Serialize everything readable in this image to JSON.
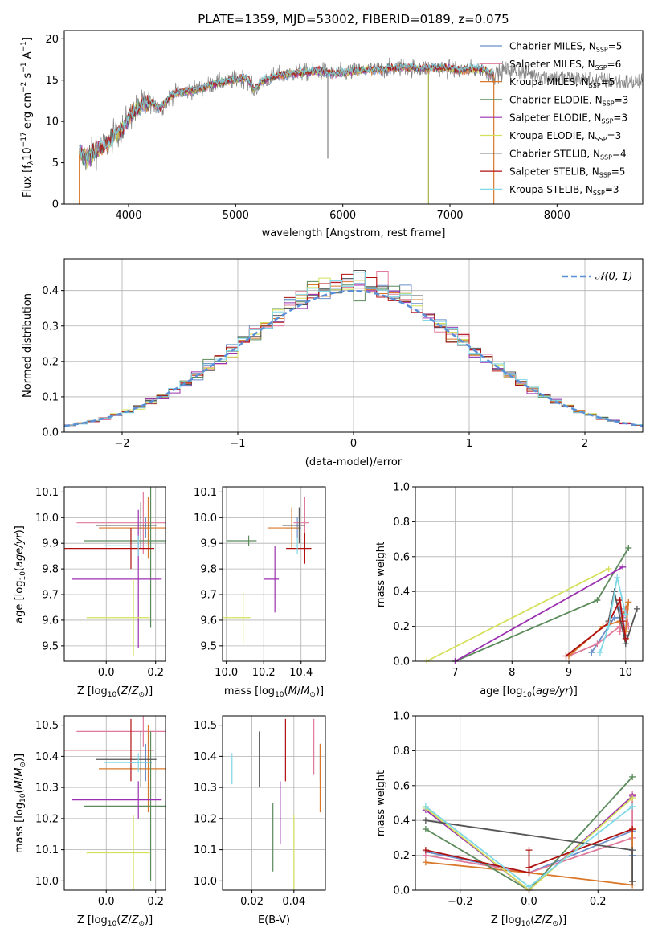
{
  "figure_title": "PLATE=1359, MJD=53002, FIBERID=0189, z=0.075",
  "colors": {
    "Chabrier MILES": "#6b8fc9",
    "Salpeter MILES": "#e07a9a",
    "Kroupa MILES": "#d9782a",
    "Chabrier ELODIE": "#5b8a5b",
    "Salpeter ELODIE": "#9b30b0",
    "Kroupa ELODIE": "#d4e05a",
    "Chabrier STELIB": "#555555",
    "Salpeter STELIB": "#b01010",
    "Kroupa STELIB": "#7fd8e6",
    "data": "#808080",
    "normal": "#5b8fd6"
  },
  "chart_data": [
    {
      "id": "spectrum",
      "type": "line",
      "title": "PLATE=1359, MJD=53002, FIBERID=0189, z=0.075",
      "xlabel": "wavelength [Angstrom, rest frame]",
      "ylabel": "Flux [f_λ 10^-17 erg cm^-2 s^-1 A^-1]",
      "xlim": [
        3400,
        8800
      ],
      "ylim": [
        0,
        21
      ],
      "xticks": [
        4000,
        5000,
        6000,
        7000,
        8000
      ],
      "yticks": [
        0,
        5,
        10,
        15,
        20
      ],
      "legend_position": "top-right",
      "legend": [
        {
          "label": "Chabrier MILES, N",
          "sub": "SSP",
          "tail": "=5",
          "color": "#6b8fc9"
        },
        {
          "label": "Salpeter MILES, N",
          "sub": "SSP",
          "tail": "=6",
          "color": "#e07a9a"
        },
        {
          "label": "Kroupa MILES, N",
          "sub": "SSP",
          "tail": "=5",
          "color": "#d9782a"
        },
        {
          "label": "Chabrier ELODIE, N",
          "sub": "SSP",
          "tail": "=3",
          "color": "#5b8a5b"
        },
        {
          "label": "Salpeter ELODIE, N",
          "sub": "SSP",
          "tail": "=3",
          "color": "#9b30b0"
        },
        {
          "label": "Kroupa ELODIE, N",
          "sub": "SSP",
          "tail": "=3",
          "color": "#d4e05a"
        },
        {
          "label": "Chabrier STELIB, N",
          "sub": "SSP",
          "tail": "=4",
          "color": "#555555"
        },
        {
          "label": "Salpeter STELIB, N",
          "sub": "SSP",
          "tail": "=5",
          "color": "#b01010"
        },
        {
          "label": "Kroupa STELIB, N",
          "sub": "SSP",
          "tail": "=3",
          "color": "#7fd8e6"
        }
      ],
      "continuum": [
        [
          3540,
          6.2
        ],
        [
          3620,
          5.5
        ],
        [
          3700,
          6.5
        ],
        [
          3800,
          7.2
        ],
        [
          3880,
          8.6
        ],
        [
          3950,
          9.2
        ],
        [
          4000,
          10.5
        ],
        [
          4100,
          11.8
        ],
        [
          4200,
          12.3
        ],
        [
          4300,
          11.6
        ],
        [
          4400,
          13.2
        ],
        [
          4500,
          13.6
        ],
        [
          4600,
          13.8
        ],
        [
          4700,
          14.1
        ],
        [
          4800,
          14.6
        ],
        [
          4900,
          14.8
        ],
        [
          5000,
          15.1
        ],
        [
          5100,
          15.3
        ],
        [
          5170,
          13.8
        ],
        [
          5250,
          14.9
        ],
        [
          5400,
          15.6
        ],
        [
          5600,
          15.9
        ],
        [
          5800,
          16.1
        ],
        [
          5900,
          15.8
        ],
        [
          6000,
          15.9
        ],
        [
          6200,
          16.2
        ],
        [
          6400,
          16.3
        ],
        [
          6563,
          16.6
        ],
        [
          6700,
          16.4
        ],
        [
          6900,
          16.5
        ],
        [
          7100,
          16.2
        ],
        [
          7300,
          16.4
        ],
        [
          7400,
          15.6
        ],
        [
          7500,
          16.2
        ],
        [
          7600,
          16.1
        ],
        [
          7800,
          15.7
        ],
        [
          8000,
          15.3
        ],
        [
          8200,
          15.2
        ],
        [
          8400,
          15.0
        ],
        [
          8600,
          14.8
        ],
        [
          8800,
          14.7
        ]
      ],
      "model_start": 3540,
      "model_end": 7410,
      "spikes": [
        [
          5860,
          5.5
        ],
        [
          6800,
          0
        ],
        [
          7410,
          0
        ]
      ]
    },
    {
      "id": "residuals",
      "type": "histogram",
      "xlabel": "(data-model)/error",
      "ylabel": "Normed distribution",
      "xlim": [
        -2.5,
        2.5
      ],
      "ylim": [
        0,
        0.49
      ],
      "xticks": [
        -2,
        -1,
        0,
        1,
        2
      ],
      "yticks": [
        0.0,
        0.1,
        0.2,
        0.3,
        0.4
      ],
      "legend_position": "top-right",
      "legend_label": "𝒩(0, 1)",
      "bin_width": 0.1
    },
    {
      "id": "age_vs_Z",
      "type": "errorbar",
      "xlabel": "Z [log10(Z/Z⊙)]",
      "ylabel": "age [log10(age/yr)]",
      "xlim": [
        -0.17,
        0.24
      ],
      "ylim": [
        9.44,
        10.12
      ],
      "xticks": [
        0.0,
        0.2
      ],
      "yticks": [
        9.5,
        9.6,
        9.7,
        9.8,
        9.9,
        10.0,
        10.1
      ],
      "points": [
        {
          "model": "Chabrier MILES",
          "x": 0.16,
          "xerr": 0.07,
          "y": 9.96,
          "yerr": 0.04
        },
        {
          "model": "Salpeter MILES",
          "x": 0.15,
          "xerr": 0.27,
          "y": 9.98,
          "yerr": 0.12
        },
        {
          "model": "Kroupa MILES",
          "x": 0.17,
          "xerr": 0.2,
          "y": 9.96,
          "yerr": 0.12
        },
        {
          "model": "Chabrier ELODIE",
          "x": 0.18,
          "xerr": 0.27,
          "y": 9.91,
          "yerr": 0.34
        },
        {
          "model": "Salpeter ELODIE",
          "x": 0.13,
          "xerr": 0.27,
          "y": 9.76,
          "yerr": 0.27
        },
        {
          "model": "Kroupa ELODIE",
          "x": 0.11,
          "xerr": 0.19,
          "y": 9.61,
          "yerr": 0.15
        },
        {
          "model": "Chabrier STELIB",
          "x": 0.14,
          "xerr": 0.18,
          "y": 9.97,
          "yerr": 0.09
        },
        {
          "model": "Salpeter STELIB",
          "x": 0.1,
          "xerr": 0.27,
          "y": 9.88,
          "yerr": 0.08
        },
        {
          "model": "Kroupa STELIB",
          "x": 0.13,
          "xerr": 0.14,
          "y": 9.89,
          "yerr": 0.04
        }
      ]
    },
    {
      "id": "age_vs_mass",
      "type": "errorbar",
      "xlabel": "mass [log10(M/M⊙)]",
      "ylabel": "",
      "xlim": [
        9.98,
        10.53
      ],
      "ylim": [
        9.44,
        10.12
      ],
      "xticks": [
        10.0,
        10.2,
        10.4
      ],
      "yticks": [
        9.5,
        9.6,
        9.7,
        9.8,
        9.9,
        10.0,
        10.1
      ],
      "points": [
        {
          "model": "Chabrier MILES",
          "x": 10.38,
          "xerr": 0.06,
          "y": 9.96,
          "yerr": 0.04
        },
        {
          "model": "Salpeter MILES",
          "x": 10.42,
          "xerr": 0.06,
          "y": 9.98,
          "yerr": 0.1
        },
        {
          "model": "Kroupa MILES",
          "x": 10.35,
          "xerr": 0.13,
          "y": 9.96,
          "yerr": 0.08
        },
        {
          "model": "Chabrier ELODIE",
          "x": 10.12,
          "xerr": 0.12,
          "y": 9.91,
          "yerr": 0.02
        },
        {
          "model": "Salpeter ELODIE",
          "x": 10.26,
          "xerr": 0.06,
          "y": 9.76,
          "yerr": 0.13
        },
        {
          "model": "Kroupa ELODIE",
          "x": 10.09,
          "xerr": 0.11,
          "y": 9.61,
          "yerr": 0.1
        },
        {
          "model": "Chabrier STELIB",
          "x": 10.39,
          "xerr": 0.09,
          "y": 9.97,
          "yerr": 0.07
        },
        {
          "model": "Salpeter STELIB",
          "x": 10.42,
          "xerr": 0.1,
          "y": 9.88,
          "yerr": 0.06
        },
        {
          "model": "Kroupa STELIB",
          "x": 10.38,
          "xerr": 0.03,
          "y": 9.89,
          "yerr": 0.03
        }
      ]
    },
    {
      "id": "weight_vs_age",
      "type": "line",
      "xlabel": "age [log10(age/yr)]",
      "ylabel": "mass weight",
      "xlim": [
        6.3,
        10.3
      ],
      "ylim": [
        0,
        1.0
      ],
      "xticks": [
        7,
        8,
        9,
        10
      ],
      "yticks": [
        0.0,
        0.2,
        0.4,
        0.6,
        0.8,
        1.0
      ],
      "series": [
        {
          "model": "Chabrier MILES",
          "points": [
            [
              9.4,
              0.05
            ],
            [
              9.8,
              0.25
            ],
            [
              9.95,
              0.25
            ],
            [
              10.0,
              0.15
            ],
            [
              9.9,
              0.3
            ]
          ]
        },
        {
          "model": "Salpeter MILES",
          "points": [
            [
              9.0,
              0.03
            ],
            [
              9.5,
              0.1
            ],
            [
              9.9,
              0.2
            ],
            [
              10.05,
              0.2
            ],
            [
              10.0,
              0.3
            ],
            [
              9.9,
              0.17
            ]
          ]
        },
        {
          "model": "Kroupa MILES",
          "points": [
            [
              9.0,
              0.03
            ],
            [
              9.6,
              0.2
            ],
            [
              9.9,
              0.23
            ],
            [
              10.05,
              0.34
            ],
            [
              10.0,
              0.17
            ]
          ]
        },
        {
          "model": "Chabrier ELODIE",
          "points": [
            [
              7.0,
              0.0
            ],
            [
              9.5,
              0.35
            ],
            [
              10.05,
              0.65
            ]
          ]
        },
        {
          "model": "Salpeter ELODIE",
          "points": [
            [
              7.0,
              0.0
            ],
            [
              9.95,
              0.54
            ]
          ]
        },
        {
          "model": "Kroupa ELODIE",
          "points": [
            [
              6.5,
              0.0
            ],
            [
              9.7,
              0.53
            ]
          ]
        },
        {
          "model": "Chabrier STELIB",
          "points": [
            [
              9.7,
              0.23
            ],
            [
              9.8,
              0.4
            ],
            [
              10.0,
              0.1
            ],
            [
              10.2,
              0.3
            ]
          ]
        },
        {
          "model": "Salpeter STELIB",
          "points": [
            [
              8.95,
              0.03
            ],
            [
              9.7,
              0.22
            ],
            [
              9.9,
              0.35
            ],
            [
              9.95,
              0.23
            ],
            [
              10.0,
              0.13
            ]
          ]
        },
        {
          "model": "Kroupa STELIB",
          "points": [
            [
              9.55,
              0.05
            ],
            [
              9.7,
              0.2
            ],
            [
              9.85,
              0.48
            ],
            [
              10.0,
              0.27
            ]
          ]
        }
      ]
    },
    {
      "id": "mass_vs_Z",
      "type": "errorbar",
      "xlabel": "Z [log10(Z/Z⊙)]",
      "ylabel": "mass [log10(M/M⊙)]",
      "xlim": [
        -0.17,
        0.24
      ],
      "ylim": [
        9.97,
        10.53
      ],
      "xticks": [
        0.0,
        0.2
      ],
      "yticks": [
        10.0,
        10.1,
        10.2,
        10.3,
        10.4,
        10.5
      ],
      "points": [
        {
          "model": "Chabrier MILES",
          "x": 0.16,
          "xerr": 0.07,
          "y": 10.38,
          "yerr": 0.06
        },
        {
          "model": "Salpeter MILES",
          "x": 0.15,
          "xerr": 0.27,
          "y": 10.48,
          "yerr": 0.05
        },
        {
          "model": "Kroupa MILES",
          "x": 0.17,
          "xerr": 0.2,
          "y": 10.36,
          "yerr": 0.14
        },
        {
          "model": "Chabrier ELODIE",
          "x": 0.18,
          "xerr": 0.27,
          "y": 10.24,
          "yerr": 0.24
        },
        {
          "model": "Salpeter ELODIE",
          "x": 0.13,
          "xerr": 0.27,
          "y": 10.26,
          "yerr": 0.06
        },
        {
          "model": "Kroupa ELODIE",
          "x": 0.11,
          "xerr": 0.19,
          "y": 10.09,
          "yerr": 0.12
        },
        {
          "model": "Chabrier STELIB",
          "x": 0.14,
          "xerr": 0.18,
          "y": 10.39,
          "yerr": 0.09
        },
        {
          "model": "Salpeter STELIB",
          "x": 0.1,
          "xerr": 0.27,
          "y": 10.42,
          "yerr": 0.1
        },
        {
          "model": "Kroupa STELIB",
          "x": 0.13,
          "xerr": 0.14,
          "y": 10.38,
          "yerr": 0.03
        }
      ]
    },
    {
      "id": "mass_vs_EBV",
      "type": "errorbar",
      "xlabel": "E(B-V)",
      "ylabel": "",
      "xlim": [
        0.006,
        0.055
      ],
      "ylim": [
        9.97,
        10.53
      ],
      "xticks": [
        0.02,
        0.04
      ],
      "yticks": [
        10.0,
        10.1,
        10.2,
        10.3,
        10.4,
        10.5
      ],
      "points": [
        {
          "model": "Chabrier MILES",
          "x": 0.0525,
          "y": 10.38,
          "yerr": 0.06
        },
        {
          "model": "Salpeter MILES",
          "x": 0.0495,
          "y": 10.43,
          "yerr": 0.09
        },
        {
          "model": "Kroupa MILES",
          "x": 0.0525,
          "y": 10.33,
          "yerr": 0.11
        },
        {
          "model": "Chabrier ELODIE",
          "x": 0.03,
          "y": 10.14,
          "yerr": 0.11
        },
        {
          "model": "Salpeter ELODIE",
          "x": 0.0335,
          "y": 10.22,
          "yerr": 0.1
        },
        {
          "model": "Kroupa ELODIE",
          "x": 0.04,
          "y": 10.08,
          "yerr": 0.13
        },
        {
          "model": "Chabrier STELIB",
          "x": 0.0235,
          "y": 10.39,
          "yerr": 0.09
        },
        {
          "model": "Salpeter STELIB",
          "x": 0.036,
          "y": 10.42,
          "yerr": 0.1
        },
        {
          "model": "Kroupa STELIB",
          "x": 0.0105,
          "y": 10.36,
          "yerr": 0.05
        }
      ]
    },
    {
      "id": "weight_vs_Z",
      "type": "line",
      "xlabel": "Z [log10(Z/Z⊙)]",
      "ylabel": "mass weight",
      "xlim": [
        -0.33,
        0.33
      ],
      "ylim": [
        0,
        1.0
      ],
      "xticks": [
        -0.2,
        0.0,
        0.2
      ],
      "yticks": [
        0.0,
        0.2,
        0.4,
        0.6,
        0.8,
        1.0
      ],
      "series": [
        {
          "model": "Chabrier MILES",
          "points": [
            [
              -0.3,
              0.22
            ],
            [
              0.0,
              0.1
            ],
            [
              0.3,
              0.34
            ],
            [
              0.3,
              0.2
            ]
          ]
        },
        {
          "model": "Salpeter MILES",
          "points": [
            [
              -0.3,
              0.2
            ],
            [
              0.0,
              0.1
            ],
            [
              0.3,
              0.3
            ],
            [
              0.3,
              0.55
            ]
          ]
        },
        {
          "model": "Kroupa MILES",
          "points": [
            [
              -0.3,
              0.16
            ],
            [
              0.0,
              0.1
            ],
            [
              0.3,
              0.03
            ],
            [
              0.3,
              0.35
            ]
          ]
        },
        {
          "model": "Chabrier ELODIE",
          "points": [
            [
              -0.3,
              0.35
            ],
            [
              0.0,
              0.0
            ],
            [
              0.3,
              0.65
            ]
          ]
        },
        {
          "model": "Salpeter ELODIE",
          "points": [
            [
              -0.3,
              0.46
            ],
            [
              0.0,
              0.0
            ],
            [
              0.3,
              0.54
            ]
          ]
        },
        {
          "model": "Kroupa ELODIE",
          "points": [
            [
              -0.3,
              0.47
            ],
            [
              0.0,
              0.0
            ],
            [
              0.3,
              0.53
            ]
          ]
        },
        {
          "model": "Chabrier STELIB",
          "points": [
            [
              -0.3,
              0.4
            ],
            [
              0.3,
              0.23
            ],
            [
              0.3,
              0.05
            ]
          ]
        },
        {
          "model": "Salpeter STELIB",
          "points": [
            [
              -0.3,
              0.23
            ],
            [
              0.0,
              0.1
            ],
            [
              0.0,
              0.23
            ],
            [
              0.0,
              0.13
            ],
            [
              0.3,
              0.35
            ]
          ]
        },
        {
          "model": "Kroupa STELIB",
          "points": [
            [
              -0.3,
              0.48
            ],
            [
              0.0,
              0.02
            ],
            [
              0.3,
              0.48
            ]
          ]
        }
      ]
    }
  ]
}
